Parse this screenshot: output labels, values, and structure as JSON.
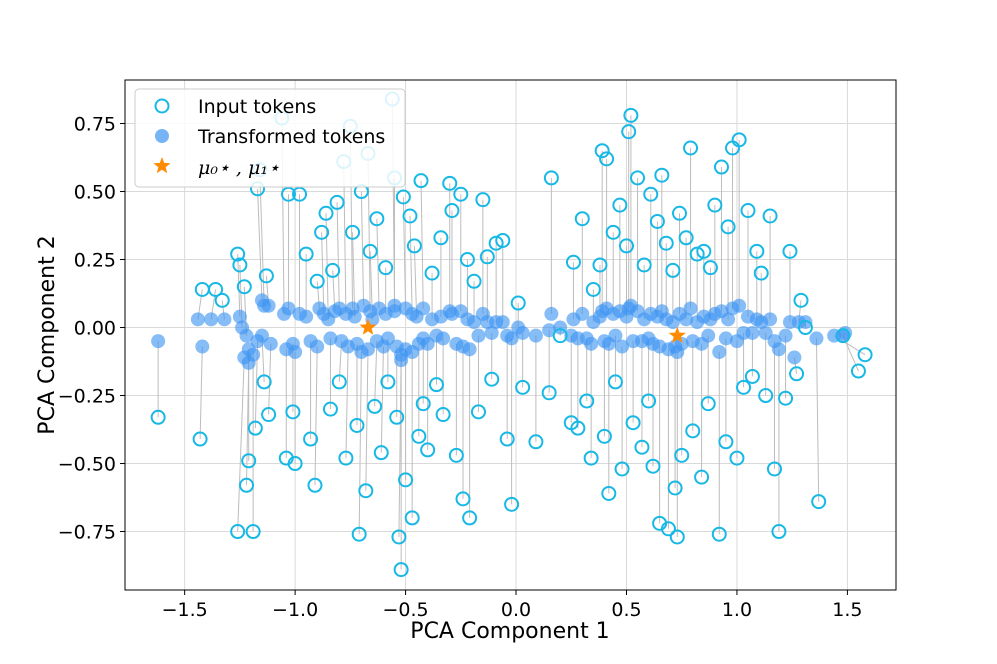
{
  "chart_data": {
    "type": "scatter",
    "title": "",
    "xlabel": "PCA Component 1",
    "ylabel": "PCA Component 2",
    "xlim": [
      -1.77,
      1.72
    ],
    "ylim": [
      -0.965,
      0.91
    ],
    "xticks": [
      -1.5,
      -1.0,
      -0.5,
      0.0,
      0.5,
      1.0,
      1.5
    ],
    "xtick_labels": [
      "−1.5",
      "−1.0",
      "−0.5",
      "0.0",
      "0.5",
      "1.0",
      "1.5"
    ],
    "yticks": [
      -0.75,
      -0.5,
      -0.25,
      0.0,
      0.25,
      0.5,
      0.75
    ],
    "ytick_labels": [
      "−0.75",
      "−0.50",
      "−0.25",
      "0.00",
      "0.25",
      "0.50",
      "0.75"
    ],
    "grid": true,
    "legend_position": "top-left",
    "colors": {
      "input": "#18b8e6",
      "transformed": "#3d94f2",
      "centers": "#ff8c00",
      "connector": "#bdbdbd",
      "grid": "#d9d9d9"
    },
    "legend": {
      "input_label": "Input tokens",
      "transformed_label": "Transformed tokens",
      "centers_label": "μ₀⋆ , μ₁⋆"
    },
    "centers": [
      {
        "x": -0.67,
        "y": 0.0
      },
      {
        "x": 0.73,
        "y": -0.03
      }
    ],
    "pairs": [
      [
        -1.62,
        -0.33,
        -1.62,
        -0.05
      ],
      [
        -1.43,
        -0.41,
        -1.42,
        -0.07
      ],
      [
        -1.42,
        0.14,
        -1.44,
        0.03
      ],
      [
        -1.36,
        0.14,
        -1.38,
        0.03
      ],
      [
        -1.33,
        0.1,
        -1.32,
        0.03
      ],
      [
        -1.26,
        0.27,
        -1.25,
        0.04
      ],
      [
        -1.25,
        0.23,
        -1.24,
        0.0
      ],
      [
        -1.23,
        0.15,
        -1.22,
        -0.03
      ],
      [
        -1.26,
        -0.75,
        -1.23,
        -0.11
      ],
      [
        -1.22,
        -0.58,
        -1.21,
        -0.13
      ],
      [
        -1.19,
        -0.75,
        -1.19,
        -0.1
      ],
      [
        -1.21,
        -0.49,
        -1.21,
        -0.08
      ],
      [
        -1.17,
        0.51,
        -1.15,
        0.1
      ],
      [
        -1.16,
        0.58,
        -1.14,
        0.08
      ],
      [
        -1.18,
        -0.37,
        -1.17,
        -0.05
      ],
      [
        -1.14,
        -0.2,
        -1.15,
        -0.03
      ],
      [
        -1.13,
        0.19,
        -1.12,
        0.08
      ],
      [
        -1.12,
        -0.32,
        -1.11,
        -0.06
      ],
      [
        -1.06,
        0.77,
        -1.05,
        0.05
      ],
      [
        -1.03,
        0.49,
        -1.03,
        0.07
      ],
      [
        -1.04,
        -0.48,
        -1.04,
        -0.08
      ],
      [
        -1.01,
        -0.31,
        -1.01,
        -0.06
      ],
      [
        -1.0,
        -0.5,
        -1.0,
        -0.09
      ],
      [
        -0.98,
        0.49,
        -0.98,
        0.05
      ],
      [
        -0.95,
        0.27,
        -0.95,
        0.04
      ],
      [
        -0.93,
        -0.41,
        -0.93,
        -0.05
      ],
      [
        -0.91,
        -0.58,
        -0.9,
        -0.07
      ],
      [
        -0.9,
        0.17,
        -0.89,
        0.07
      ],
      [
        -0.88,
        0.35,
        -0.87,
        0.05
      ],
      [
        -0.86,
        0.42,
        -0.85,
        0.03
      ],
      [
        -0.84,
        -0.3,
        -0.84,
        -0.04
      ],
      [
        -0.83,
        0.21,
        -0.82,
        0.06
      ],
      [
        -0.81,
        0.46,
        -0.8,
        0.07
      ],
      [
        -0.8,
        -0.2,
        -0.79,
        -0.05
      ],
      [
        -0.78,
        0.61,
        -0.77,
        0.05
      ],
      [
        -0.77,
        -0.48,
        -0.76,
        -0.07
      ],
      [
        -0.75,
        0.74,
        -0.74,
        0.07
      ],
      [
        -0.74,
        0.35,
        -0.73,
        0.04
      ],
      [
        -0.72,
        -0.36,
        -0.72,
        -0.06
      ],
      [
        -0.71,
        -0.76,
        -0.7,
        -0.09
      ],
      [
        -0.7,
        0.5,
        -0.69,
        0.08
      ],
      [
        -0.68,
        -0.6,
        -0.67,
        -0.08
      ],
      [
        -0.67,
        0.64,
        -0.66,
        0.06
      ],
      [
        -0.66,
        0.28,
        -0.65,
        0.03
      ],
      [
        -0.64,
        -0.29,
        -0.63,
        -0.05
      ],
      [
        -0.63,
        0.4,
        -0.62,
        0.07
      ],
      [
        -0.61,
        -0.46,
        -0.6,
        -0.07
      ],
      [
        -0.59,
        0.22,
        -0.59,
        0.05
      ],
      [
        -0.58,
        -0.2,
        -0.58,
        -0.04
      ],
      [
        -0.56,
        0.84,
        -0.55,
        0.08
      ],
      [
        -0.55,
        0.55,
        -0.55,
        0.06
      ],
      [
        -0.54,
        -0.33,
        -0.54,
        -0.07
      ],
      [
        -0.53,
        -0.77,
        -0.52,
        -0.1
      ],
      [
        -0.52,
        -0.89,
        -0.52,
        -0.12
      ],
      [
        -0.51,
        0.48,
        -0.5,
        0.07
      ],
      [
        -0.5,
        -0.56,
        -0.5,
        -0.08
      ],
      [
        -0.48,
        0.41,
        -0.47,
        0.05
      ],
      [
        -0.47,
        -0.7,
        -0.47,
        -0.09
      ],
      [
        -0.46,
        0.3,
        -0.45,
        0.04
      ],
      [
        -0.44,
        -0.4,
        -0.44,
        -0.06
      ],
      [
        -0.43,
        0.54,
        -0.42,
        0.07
      ],
      [
        -0.42,
        -0.28,
        -0.42,
        -0.04
      ],
      [
        -0.4,
        -0.45,
        -0.4,
        -0.06
      ],
      [
        -0.38,
        0.2,
        -0.38,
        0.03
      ],
      [
        -0.36,
        -0.21,
        -0.36,
        -0.03
      ],
      [
        -0.34,
        0.33,
        -0.34,
        0.04
      ],
      [
        -0.33,
        -0.32,
        -0.33,
        -0.04
      ],
      [
        -0.3,
        0.53,
        -0.3,
        0.06
      ],
      [
        -0.29,
        0.43,
        -0.29,
        0.05
      ],
      [
        -0.27,
        -0.47,
        -0.27,
        -0.06
      ],
      [
        -0.25,
        0.49,
        -0.25,
        0.06
      ],
      [
        -0.24,
        -0.63,
        -0.24,
        -0.07
      ],
      [
        -0.22,
        0.25,
        -0.22,
        0.03
      ],
      [
        -0.21,
        -0.7,
        -0.21,
        -0.08
      ],
      [
        -0.19,
        0.17,
        -0.19,
        0.02
      ],
      [
        -0.17,
        -0.31,
        -0.17,
        -0.03
      ],
      [
        -0.15,
        0.47,
        -0.15,
        0.05
      ],
      [
        -0.13,
        0.26,
        -0.13,
        0.02
      ],
      [
        -0.11,
        -0.19,
        -0.11,
        -0.02
      ],
      [
        -0.09,
        0.31,
        -0.09,
        0.02
      ],
      [
        -0.06,
        0.32,
        -0.06,
        0.02
      ],
      [
        -0.04,
        -0.41,
        -0.04,
        -0.03
      ],
      [
        -0.02,
        -0.65,
        -0.02,
        -0.04
      ],
      [
        0.01,
        0.09,
        0.01,
        0.0
      ],
      [
        0.03,
        -0.22,
        0.03,
        -0.02
      ],
      [
        0.09,
        -0.42,
        0.09,
        -0.03
      ],
      [
        0.15,
        -0.24,
        0.15,
        -0.01
      ],
      [
        0.16,
        0.55,
        0.16,
        0.05
      ],
      [
        0.2,
        -0.03,
        0.2,
        0.0
      ],
      [
        0.25,
        -0.35,
        0.25,
        -0.03
      ],
      [
        0.26,
        0.24,
        0.26,
        0.03
      ],
      [
        0.28,
        -0.37,
        0.28,
        -0.04
      ],
      [
        0.3,
        0.4,
        0.3,
        0.05
      ],
      [
        0.32,
        -0.27,
        0.32,
        -0.04
      ],
      [
        0.34,
        -0.48,
        0.34,
        -0.06
      ],
      [
        0.35,
        0.14,
        0.35,
        0.02
      ],
      [
        0.38,
        0.23,
        0.38,
        0.04
      ],
      [
        0.39,
        0.65,
        0.39,
        0.06
      ],
      [
        0.4,
        -0.4,
        0.4,
        -0.05
      ],
      [
        0.41,
        0.62,
        0.41,
        0.07
      ],
      [
        0.42,
        -0.61,
        0.42,
        -0.06
      ],
      [
        0.44,
        0.35,
        0.44,
        0.05
      ],
      [
        0.45,
        -0.2,
        0.45,
        -0.03
      ],
      [
        0.47,
        0.45,
        0.47,
        0.06
      ],
      [
        0.48,
        -0.52,
        0.48,
        -0.07
      ],
      [
        0.5,
        0.3,
        0.5,
        0.04
      ],
      [
        0.51,
        0.72,
        0.51,
        0.07
      ],
      [
        0.52,
        0.78,
        0.52,
        0.08
      ],
      [
        0.53,
        -0.35,
        0.53,
        -0.05
      ],
      [
        0.55,
        0.55,
        0.55,
        0.06
      ],
      [
        0.57,
        -0.44,
        0.57,
        -0.05
      ],
      [
        0.58,
        0.23,
        0.58,
        0.03
      ],
      [
        0.6,
        -0.27,
        0.6,
        -0.04
      ],
      [
        0.61,
        0.49,
        0.61,
        0.05
      ],
      [
        0.62,
        -0.51,
        0.62,
        -0.06
      ],
      [
        0.64,
        0.39,
        0.64,
        0.04
      ],
      [
        0.65,
        -0.72,
        0.65,
        -0.07
      ],
      [
        0.66,
        0.56,
        0.66,
        0.06
      ],
      [
        0.68,
        0.31,
        0.68,
        0.03
      ],
      [
        0.69,
        -0.74,
        0.69,
        -0.08
      ],
      [
        0.71,
        0.21,
        0.71,
        0.02
      ],
      [
        0.72,
        -0.59,
        0.72,
        -0.07
      ],
      [
        0.73,
        -0.77,
        0.73,
        -0.09
      ],
      [
        0.74,
        0.42,
        0.74,
        0.05
      ],
      [
        0.75,
        -0.47,
        0.75,
        -0.06
      ],
      [
        0.77,
        0.33,
        0.77,
        0.03
      ],
      [
        0.79,
        0.66,
        0.79,
        0.07
      ],
      [
        0.8,
        -0.38,
        0.8,
        -0.05
      ],
      [
        0.82,
        0.27,
        0.82,
        0.02
      ],
      [
        0.84,
        -0.55,
        0.84,
        -0.06
      ],
      [
        0.85,
        0.28,
        0.85,
        0.04
      ],
      [
        0.87,
        -0.28,
        0.87,
        -0.03
      ],
      [
        0.88,
        0.22,
        0.88,
        0.03
      ],
      [
        0.9,
        0.45,
        0.9,
        0.05
      ],
      [
        0.92,
        -0.76,
        0.92,
        -0.09
      ],
      [
        0.93,
        0.59,
        0.93,
        0.06
      ],
      [
        0.95,
        -0.42,
        0.95,
        -0.04
      ],
      [
        0.96,
        0.37,
        0.96,
        0.03
      ],
      [
        0.98,
        0.66,
        0.98,
        0.07
      ],
      [
        1.0,
        -0.48,
        1.0,
        -0.05
      ],
      [
        1.01,
        0.69,
        1.01,
        0.08
      ],
      [
        1.03,
        -0.22,
        1.03,
        -0.02
      ],
      [
        1.05,
        0.43,
        1.05,
        0.04
      ],
      [
        1.07,
        -0.18,
        1.07,
        -0.02
      ],
      [
        1.09,
        0.28,
        1.09,
        0.03
      ],
      [
        1.11,
        0.2,
        1.11,
        0.02
      ],
      [
        1.13,
        -0.25,
        1.13,
        -0.02
      ],
      [
        1.15,
        0.41,
        1.15,
        0.03
      ],
      [
        1.17,
        -0.52,
        1.17,
        -0.05
      ],
      [
        1.19,
        -0.75,
        1.19,
        -0.08
      ],
      [
        1.22,
        -0.26,
        1.22,
        -0.03
      ],
      [
        1.24,
        0.28,
        1.24,
        0.02
      ],
      [
        1.27,
        -0.17,
        1.26,
        -0.11
      ],
      [
        1.29,
        0.1,
        1.28,
        0.02
      ],
      [
        1.31,
        0.0,
        1.31,
        0.02
      ],
      [
        1.37,
        -0.64,
        1.36,
        -0.04
      ],
      [
        1.48,
        -0.03,
        1.49,
        -0.02
      ],
      [
        1.55,
        -0.16,
        1.48,
        -0.03
      ],
      [
        1.58,
        -0.1,
        1.44,
        -0.03
      ]
    ]
  }
}
